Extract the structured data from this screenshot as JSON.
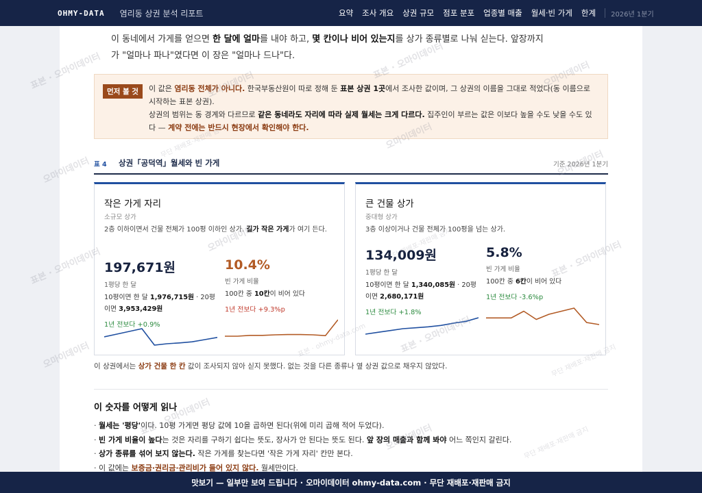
{
  "nav": {
    "brand": "OHMY-DATA",
    "report_title": "염리동 상권 분석 리포트",
    "items": [
      "요약",
      "조사 개요",
      "상권 규모",
      "점포 분포",
      "업종별 매출",
      "월세·빈 가게",
      "한계"
    ],
    "period": "2026년 1분기"
  },
  "intro": {
    "t1": "이 동네에서 가게를 얻으면 ",
    "b1": "한 달에 얼마",
    "t2": "를 내야 하고, ",
    "b2": "몇 칸이나 비어 있는지",
    "t3": "를 상가 종류별로 나눠 싣는다. 앞장까지가 \"얼마나 파나\"였다면 이 장은 \"얼마나 드나\"다."
  },
  "note": {
    "badge": "먼저 볼 것",
    "p1": "이 값은 ",
    "p1_hl": "염리동 전체가 아니다.",
    "p1b": " 한국부동산원이 따로 정해 둔 ",
    "p1_b": "표본 상권 1곳",
    "p1c": "에서 조사한 값이며, 그 상권의 이름을 그대로 적었다(동 이름으로 시작하는 표본 상권).",
    "p2": "상권의 범위는 동 경계와 다르므로 ",
    "p2_b": "같은 동네라도 자리에 따라 실제 월세는 크게 다르다.",
    "p2b": " 집주인이 부르는 값은 이보다 높을 수도 낮을 수도 있다 — ",
    "p2_hl": "계약 전에는 반드시 현장에서 확인해야 한다."
  },
  "table": {
    "num": "표 4",
    "title": "상권「공덕역」월세와 빈 가게",
    "basis": "기준 2026년 1분기"
  },
  "cards": {
    "small": {
      "title": "작은 가게 자리",
      "sub": "소규모 상가",
      "desc_a": "2층 이하이면서 건물 전체가 100평 이하인 상가. ",
      "desc_b": "길가 작은 가게",
      "desc_c": "가 여기 든다.",
      "rent": {
        "value": "197,671원",
        "label": "1평당 한 달",
        "det1": "10평이면 한 달 ",
        "det1_b": "1,976,715원",
        "det1_c": " · 20평",
        "det2": "이면 ",
        "det2_b": "3,953,429원",
        "change": "1년 전보다 +0.9%"
      },
      "vacancy": {
        "value": "10.4%",
        "label": "빈 가게 비율",
        "det1": "100칸 중 ",
        "det1_b": "10칸",
        "det1_c": "이 비어 있다",
        "change": "1년 전보다 +9.3%p"
      }
    },
    "large": {
      "title": "큰 건물 상가",
      "sub": "중대형 상가",
      "desc_a": "3층 이상이거나 건물 전체가 100평을 넘는 상가.",
      "rent": {
        "value": "134,009원",
        "label": "1평당 한 달",
        "det1": "10평이면 한 달 ",
        "det1_b": "1,340,085원",
        "det1_c": " · 20평",
        "det2": "이면 ",
        "det2_b": "2,680,171원",
        "change": "1년 전보다 +1.8%"
      },
      "vacancy": {
        "value": "5.8%",
        "label": "빈 가게 비율",
        "det1": "100칸 중 ",
        "det1_b": "6칸",
        "det1_c": "이 비어 있다",
        "change": "1년 전보다 -3.6%p"
      }
    }
  },
  "fill_note": {
    "a": "이 상권에서는 ",
    "b": "상가 건물 한 칸",
    "c": " 값이 조사되지 않아 싣지 못했다. 없는 것을 다른 종류나 옆 상권 값으로 채우지 않았다."
  },
  "how": {
    "title": "이 숫자를 어떻게 읽나",
    "items": [
      {
        "b": "월세는 '평당'",
        "t": "이다. 10평 가게면 평당 값에 10을 곱하면 된다(위에 미리 곱해 적어 두었다)."
      },
      {
        "b": "빈 가게 비율이 높다",
        "t": "는 것은 자리를 구하기 쉽다는 뜻도, 장사가 안 된다는 뜻도 된다. ",
        "b2": "앞 장의 매출과 함께 봐야",
        "t2": " 어느 쪽인지 갈린다."
      },
      {
        "b": "상가 종류를 섞어 보지 않는다.",
        "t": " 작은 가게를 찾는다면 '작은 가게 자리' 칸만 본다."
      },
      {
        "t": "이 값에는 ",
        "hl": "보증금·권리금·관리비가 들어 있지 않다.",
        "t2": " 월세만이다."
      }
    ]
  },
  "sparklines": {
    "small_rent": [
      3,
      4,
      5,
      6,
      0,
      0.5,
      0.8,
      1.2,
      2,
      2.8
    ],
    "small_vacancy": [
      1,
      1,
      1.3,
      1.3,
      1.5,
      1.6,
      1.6,
      1.5,
      1.2,
      7
    ],
    "large_rent": [
      1,
      1.8,
      2.6,
      3.4,
      3.8,
      4.2,
      4.8,
      5.8,
      6.6,
      8.2
    ],
    "large_vacancy": [
      4.5,
      4.5,
      4.5,
      5.8,
      4.2,
      5.2,
      5.8,
      6.4,
      3.6,
      3.2
    ]
  },
  "colors": {
    "navy": "#162447",
    "accent": "#1f4fa0",
    "warn": "#b25a24",
    "green": "#2b8a3e",
    "red": "#c0392b"
  },
  "watermark": {
    "text1": "표본 · 오마이데이터",
    "text2": "오마이데이터",
    "text3": "무단 재배포·재판매 금지",
    "text4": "표본 · ohmy-data.com"
  },
  "footer": "맛보기 — 일부만 보여 드립니다 · 오마이데이터 ohmy-data.com · 무단 재배포·재판매 금지"
}
